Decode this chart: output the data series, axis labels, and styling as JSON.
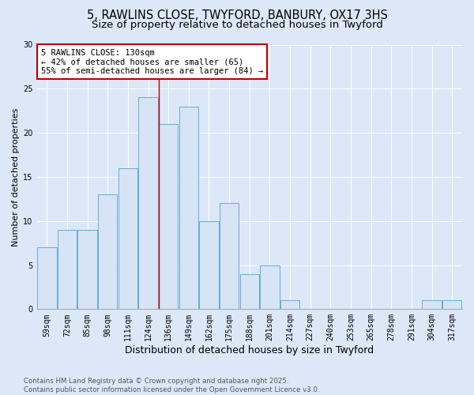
{
  "title_line1": "5, RAWLINS CLOSE, TWYFORD, BANBURY, OX17 3HS",
  "title_line2": "Size of property relative to detached houses in Twyford",
  "xlabel": "Distribution of detached houses by size in Twyford",
  "ylabel": "Number of detached properties",
  "footnote": "Contains HM Land Registry data © Crown copyright and database right 2025.\nContains public sector information licensed under the Open Government Licence v3.0.",
  "categories": [
    "59sqm",
    "72sqm",
    "85sqm",
    "98sqm",
    "111sqm",
    "124sqm",
    "136sqm",
    "149sqm",
    "162sqm",
    "175sqm",
    "188sqm",
    "201sqm",
    "214sqm",
    "227sqm",
    "240sqm",
    "253sqm",
    "265sqm",
    "278sqm",
    "291sqm",
    "304sqm",
    "317sqm"
  ],
  "values": [
    7,
    9,
    9,
    13,
    16,
    24,
    21,
    23,
    10,
    12,
    4,
    5,
    1,
    0,
    0,
    0,
    0,
    0,
    0,
    1,
    1
  ],
  "bar_color": "#d6e4f5",
  "bar_edge_color": "#6aaad4",
  "red_line_x": 6.0,
  "red_line_color": "#bb0000",
  "annotation_text": "5 RAWLINS CLOSE: 130sqm\n← 42% of detached houses are smaller (65)\n55% of semi-detached houses are larger (84) →",
  "annotation_box_facecolor": "#ffffff",
  "annotation_box_edgecolor": "#bb0000",
  "ylim": [
    0,
    30
  ],
  "yticks": [
    0,
    5,
    10,
    15,
    20,
    25,
    30
  ],
  "background_color": "#dce8f8",
  "axes_background": "#dce8f8",
  "grid_color": "#ffffff",
  "title_fontsize": 10.5,
  "subtitle_fontsize": 9.5,
  "tick_fontsize": 7,
  "ylabel_fontsize": 8,
  "xlabel_fontsize": 9
}
